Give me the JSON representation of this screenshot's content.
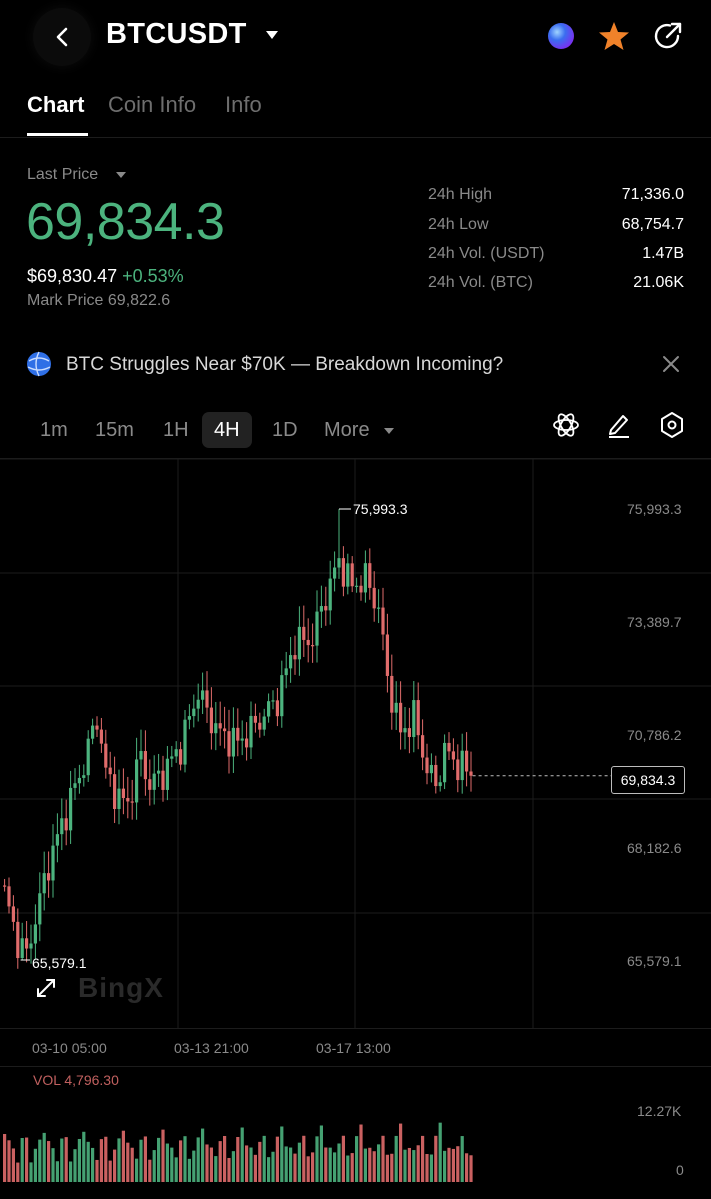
{
  "header": {
    "pair": "BTCUSDT"
  },
  "tabs": [
    "Chart",
    "Coin Info",
    "Info"
  ],
  "price": {
    "label": "Last Price",
    "last": "69,834.3",
    "usd": "$69,830.47",
    "change": "+0.53%",
    "mark": "Mark Price 69,822.6"
  },
  "stats": [
    {
      "label": "24h High",
      "value": "71,336.0"
    },
    {
      "label": "24h Low",
      "value": "68,754.7"
    },
    {
      "label": "24h Vol. (USDT)",
      "value": "1.47B"
    },
    {
      "label": "24h Vol. (BTC)",
      "value": "21.06K"
    }
  ],
  "news": {
    "headline": "BTC Struggles Near $70K — Breakdown Incoming?"
  },
  "timeframes": {
    "items": [
      "1m",
      "15m",
      "1H",
      "4H",
      "1D",
      "More"
    ],
    "active": "4H"
  },
  "chart": {
    "y_ticks": [
      "75,993.3",
      "73,389.7",
      "70,786.2",
      "68,182.6",
      "65,579.1"
    ],
    "high_label": "75,993.3",
    "low_label": "65,579.1",
    "current_label": "69,834.3",
    "x_ticks": [
      "03-10 05:00",
      "03-13 21:00",
      "03-17 13:00"
    ],
    "watermark": "BingX"
  },
  "volume": {
    "label": "VOL 4,796.30",
    "max_label": "12.27K",
    "zero_label": "0"
  },
  "colors": {
    "up": "#4cb37e",
    "down": "#e06c6b",
    "accent_star": "#f7931a"
  },
  "chart_data": {
    "type": "candlestick",
    "ylim": [
      65579.1,
      75993.3
    ],
    "current": 69834.3,
    "note_series": "per-candle OHLC omitted; shape drawn procedurally"
  }
}
